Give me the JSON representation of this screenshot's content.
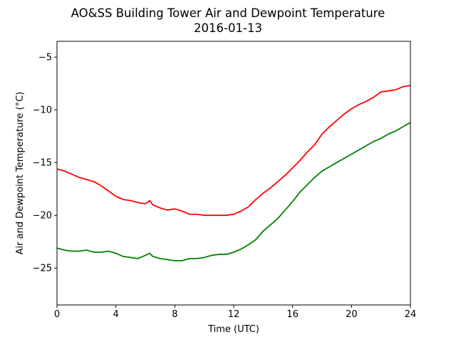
{
  "chart_data": {
    "type": "line",
    "title": "AO&SS Building Tower Air and Dewpoint Temperature",
    "subtitle": "2016-01-13",
    "xlabel": "Time (UTC)",
    "ylabel": "Air and Dewpoint Temperature (°C)",
    "xlim": [
      0,
      24
    ],
    "ylim": [
      -28.5,
      -3.5
    ],
    "xticks": [
      0,
      4,
      8,
      12,
      16,
      20,
      24
    ],
    "yticks": [
      -25,
      -20,
      -15,
      -10,
      -5
    ],
    "grid": false,
    "legend": "none",
    "series": [
      {
        "color": "#ff0000",
        "points": [
          [
            0,
            -15.6
          ],
          [
            0.5,
            -15.8
          ],
          [
            1,
            -16.1
          ],
          [
            1.5,
            -16.4
          ],
          [
            2,
            -16.6
          ],
          [
            2.5,
            -16.8
          ],
          [
            3,
            -17.2
          ],
          [
            3.5,
            -17.7
          ],
          [
            4,
            -18.2
          ],
          [
            4.5,
            -18.5
          ],
          [
            5,
            -18.6
          ],
          [
            5.5,
            -18.8
          ],
          [
            6,
            -18.9
          ],
          [
            6.3,
            -18.6
          ],
          [
            6.5,
            -19.0
          ],
          [
            7,
            -19.3
          ],
          [
            7.5,
            -19.5
          ],
          [
            8,
            -19.4
          ],
          [
            8.5,
            -19.6
          ],
          [
            9,
            -19.9
          ],
          [
            9.5,
            -19.9
          ],
          [
            10,
            -20.0
          ],
          [
            10.5,
            -20.0
          ],
          [
            11,
            -20.0
          ],
          [
            11.5,
            -20.0
          ],
          [
            12,
            -19.9
          ],
          [
            12.5,
            -19.6
          ],
          [
            13,
            -19.2
          ],
          [
            13.5,
            -18.5
          ],
          [
            14,
            -17.9
          ],
          [
            14.5,
            -17.4
          ],
          [
            15,
            -16.8
          ],
          [
            15.5,
            -16.2
          ],
          [
            16,
            -15.5
          ],
          [
            16.5,
            -14.8
          ],
          [
            17,
            -14.0
          ],
          [
            17.5,
            -13.3
          ],
          [
            18,
            -12.3
          ],
          [
            18.5,
            -11.6
          ],
          [
            19,
            -11.0
          ],
          [
            19.5,
            -10.4
          ],
          [
            20,
            -9.9
          ],
          [
            20.5,
            -9.5
          ],
          [
            21,
            -9.2
          ],
          [
            21.5,
            -8.8
          ],
          [
            22,
            -8.3
          ],
          [
            22.5,
            -8.2
          ],
          [
            23,
            -8.1
          ],
          [
            23.5,
            -7.8
          ],
          [
            24,
            -7.7
          ]
        ]
      },
      {
        "color": "#008000",
        "points": [
          [
            0,
            -23.1
          ],
          [
            0.5,
            -23.3
          ],
          [
            1,
            -23.4
          ],
          [
            1.5,
            -23.4
          ],
          [
            2,
            -23.3
          ],
          [
            2.5,
            -23.5
          ],
          [
            3,
            -23.5
          ],
          [
            3.5,
            -23.4
          ],
          [
            4,
            -23.6
          ],
          [
            4.5,
            -23.9
          ],
          [
            5,
            -24.0
          ],
          [
            5.5,
            -24.1
          ],
          [
            6,
            -23.8
          ],
          [
            6.3,
            -23.6
          ],
          [
            6.5,
            -23.9
          ],
          [
            7,
            -24.1
          ],
          [
            7.5,
            -24.2
          ],
          [
            8,
            -24.3
          ],
          [
            8.5,
            -24.3
          ],
          [
            9,
            -24.1
          ],
          [
            9.5,
            -24.1
          ],
          [
            10,
            -24.0
          ],
          [
            10.5,
            -23.8
          ],
          [
            11,
            -23.7
          ],
          [
            11.5,
            -23.7
          ],
          [
            12,
            -23.5
          ],
          [
            12.5,
            -23.2
          ],
          [
            13,
            -22.8
          ],
          [
            13.5,
            -22.3
          ],
          [
            14,
            -21.5
          ],
          [
            14.5,
            -20.9
          ],
          [
            15,
            -20.3
          ],
          [
            15.5,
            -19.5
          ],
          [
            16,
            -18.7
          ],
          [
            16.5,
            -17.8
          ],
          [
            17,
            -17.1
          ],
          [
            17.5,
            -16.4
          ],
          [
            18,
            -15.8
          ],
          [
            18.5,
            -15.4
          ],
          [
            19,
            -15.0
          ],
          [
            19.5,
            -14.6
          ],
          [
            20,
            -14.2
          ],
          [
            20.5,
            -13.8
          ],
          [
            21,
            -13.4
          ],
          [
            21.5,
            -13.0
          ],
          [
            22,
            -12.7
          ],
          [
            22.5,
            -12.3
          ],
          [
            23,
            -12.0
          ],
          [
            23.5,
            -11.6
          ],
          [
            24,
            -11.2
          ]
        ]
      }
    ]
  }
}
